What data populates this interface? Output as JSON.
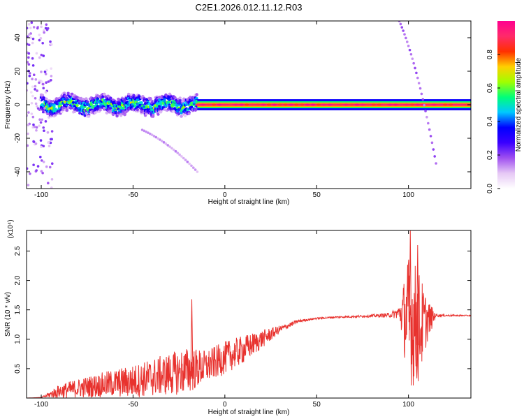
{
  "title": "C2E1.2026.012.11.12.R03",
  "colorbar": {
    "label": "Normalized spectral amplitude",
    "ticks": [
      "0.0",
      "0.2",
      "0.4",
      "0.6",
      "0.8"
    ],
    "tick_values": [
      0.0,
      0.2,
      0.4,
      0.6,
      0.8
    ],
    "range": [
      0,
      1
    ],
    "colors": [
      "#ffffff",
      "#e6c8f5",
      "#a050f0",
      "#3a00ff",
      "#0000ff",
      "#00c8ff",
      "#00ff7a",
      "#a0ff00",
      "#ffd000",
      "#ff3000",
      "#ff2a6a",
      "#ff0090"
    ]
  },
  "chart_data": [
    {
      "type": "heatmap",
      "title": "C2E1.2026.012.11.12.R03",
      "xlabel": "Height of straight line (km)",
      "ylabel": "Frequency (Hz)",
      "xlim": [
        -108,
        134
      ],
      "ylim": [
        -50,
        50
      ],
      "x_ticks": [
        -100,
        -50,
        0,
        50,
        100
      ],
      "x_tick_labels": [
        "-100",
        "-50",
        "0",
        "50",
        "100"
      ],
      "y_ticks": [
        -40,
        -20,
        0,
        20,
        40
      ],
      "y_tick_labels": [
        "-40",
        "-20",
        "0",
        "20",
        "40"
      ],
      "features": [
        {
          "name": "noisy-band",
          "x_range": [
            -100,
            -15
          ],
          "center_hz": 0,
          "half_width_hz": 5,
          "peak_amplitude": 0.75
        },
        {
          "name": "steady-line",
          "x_range": [
            -15,
            134
          ],
          "center_hz": 0,
          "half_width_hz": 1.5,
          "peak_amplitude": 0.95
        },
        {
          "name": "diagonal-streak-a",
          "x_range": [
            -45,
            -15
          ],
          "hz_range": [
            -15,
            -40
          ],
          "peak_amplitude": 0.15
        },
        {
          "name": "diagonal-streak-b",
          "x_range": [
            95,
            115
          ],
          "hz_range": [
            50,
            -35
          ],
          "peak_amplitude": 0.2
        }
      ]
    },
    {
      "type": "line",
      "xlabel": "Height of straight line (km)",
      "ylabel": "SNR (10 * v/v)",
      "y_multiplier_label": "(x10⁴)",
      "xlim": [
        -108,
        134
      ],
      "ylim": [
        0,
        2.85
      ],
      "x_ticks": [
        -100,
        -50,
        0,
        50,
        100
      ],
      "x_tick_labels": [
        "-100",
        "-50",
        "0",
        "50",
        "100"
      ],
      "y_ticks": [
        0.5,
        1.0,
        1.5,
        2.0,
        2.5
      ],
      "y_tick_labels": [
        "0.5",
        "1.0",
        "1.5",
        "2.0",
        "2.5"
      ],
      "series": [
        {
          "name": "SNR",
          "color": "#e8322e",
          "envelope_x": [
            -108,
            -100,
            -90,
            -80,
            -70,
            -60,
            -50,
            -40,
            -30,
            -20,
            -10,
            0,
            10,
            20,
            30,
            40,
            50,
            60,
            70,
            80,
            90,
            95,
            100,
            105,
            110,
            115,
            120,
            134
          ],
          "envelope_base": [
            0.0,
            0.01,
            0.08,
            0.12,
            0.15,
            0.18,
            0.2,
            0.25,
            0.3,
            0.35,
            0.45,
            0.6,
            0.75,
            0.95,
            1.15,
            1.3,
            1.35,
            1.37,
            1.38,
            1.39,
            1.4,
            1.42,
            1.0,
            0.9,
            1.2,
            1.4,
            1.4,
            1.4
          ],
          "envelope_noise": [
            0.0,
            0.0,
            0.15,
            0.2,
            0.25,
            0.3,
            0.35,
            0.4,
            0.45,
            0.5,
            0.35,
            0.35,
            0.3,
            0.2,
            0.08,
            0.03,
            0.02,
            0.02,
            0.02,
            0.03,
            0.05,
            0.15,
            1.4,
            1.3,
            0.5,
            0.03,
            0.02,
            0.01
          ],
          "annotated_peaks": [
            {
              "x": -18,
              "y": 1.68
            },
            {
              "x": 101,
              "y": 2.85
            },
            {
              "x": 105,
              "y": 2.6
            }
          ]
        }
      ]
    }
  ]
}
